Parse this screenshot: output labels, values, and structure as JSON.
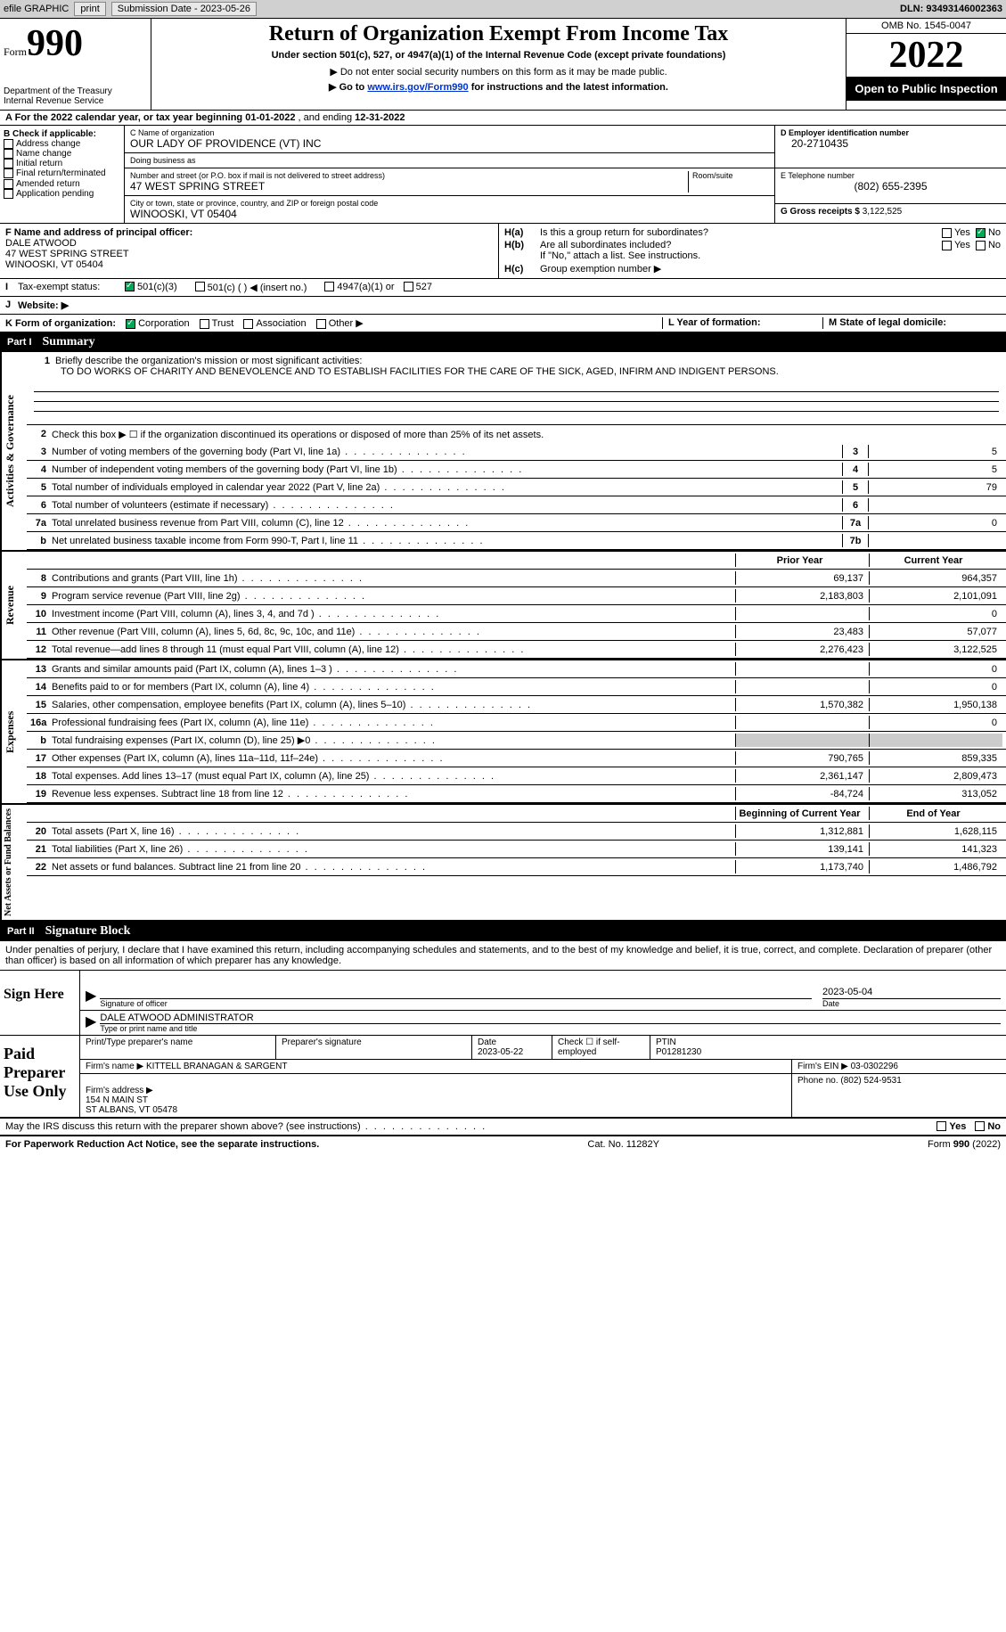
{
  "topbar": {
    "efile_label": "efile GRAPHIC",
    "print_btn": "print",
    "submission_label": "Submission Date - 2023-05-26",
    "dln_label": "DLN: 93493146002363"
  },
  "header": {
    "form_word": "Form",
    "form_num": "990",
    "dept": "Department of the Treasury\nInternal Revenue Service",
    "title": "Return of Organization Exempt From Income Tax",
    "subtitle": "Under section 501(c), 527, or 4947(a)(1) of the Internal Revenue Code (except private foundations)",
    "note1": "▶ Do not enter social security numbers on this form as it may be made public.",
    "note2": "▶ Go to",
    "note2_link": "www.irs.gov/Form990",
    "note2_tail": "for instructions and the latest information.",
    "omb": "OMB No. 1545-0047",
    "year": "2022",
    "open_public": "Open to Public Inspection"
  },
  "row_a": {
    "text": "A For the 2022 calendar year, or tax year beginning",
    "begin": "01-01-2022",
    "mid": ", and ending",
    "end": "12-31-2022"
  },
  "section_b": {
    "check_label": "B Check if applicable:",
    "opts": [
      "Address change",
      "Name change",
      "Initial return",
      "Final return/terminated",
      "Amended return",
      "Application pending"
    ],
    "c_label": "C Name of organization",
    "org_name": "OUR LADY OF PROVIDENCE (VT) INC",
    "dba_label": "Doing business as",
    "dba": "",
    "street_label": "Number and street (or P.O. box if mail is not delivered to street address)",
    "room_label": "Room/suite",
    "street": "47 WEST SPRING STREET",
    "city_label": "City or town, state or province, country, and ZIP or foreign postal code",
    "city": "WINOOSKI, VT  05404",
    "d_label": "D Employer identification number",
    "ein": "20-2710435",
    "e_label": "E Telephone number",
    "phone": "(802) 655-2395",
    "g_label": "G Gross receipts $",
    "gross": "3,122,525"
  },
  "section_fh": {
    "f_label": "F Name and address of principal officer:",
    "officer": "DALE ATWOOD\n47 WEST SPRING STREET\nWINOOSKI, VT  05404",
    "ha_label": "H(a)",
    "ha_text": "Is this a group return for subordinates?",
    "hb_label": "H(b)",
    "hb_text": "Are all subordinates included?",
    "hb_note": "If \"No,\" attach a list. See instructions.",
    "hc_label": "H(c)",
    "hc_text": "Group exemption number ▶",
    "yes": "Yes",
    "no": "No"
  },
  "row_i": {
    "label": "I",
    "text": "Tax-exempt status:",
    "opt1": "501(c)(3)",
    "opt2": "501(c) (   ) ◀ (insert no.)",
    "opt3": "4947(a)(1) or",
    "opt4": "527"
  },
  "row_j": {
    "label": "J",
    "text": "Website: ▶"
  },
  "row_k": {
    "label": "K Form of organization:",
    "opts": [
      "Corporation",
      "Trust",
      "Association",
      "Other ▶"
    ],
    "l_label": "L Year of formation:",
    "m_label": "M State of legal domicile:"
  },
  "part1": {
    "num": "Part I",
    "title": "Summary",
    "side_activities": "Activities & Governance",
    "side_revenue": "Revenue",
    "side_expenses": "Expenses",
    "side_net": "Net Assets or Fund Balances",
    "line1_label": "1",
    "line1_text": "Briefly describe the organization's mission or most significant activities:",
    "mission": "TO DO WORKS OF CHARITY AND BENEVOLENCE AND TO ESTABLISH FACILITIES FOR THE CARE OF THE SICK, AGED, INFIRM AND INDIGENT PERSONS.",
    "line2_label": "2",
    "line2_text": "Check this box ▶ ☐ if the organization discontinued its operations or disposed of more than 25% of its net assets.",
    "prior_header": "Prior Year",
    "current_header": "Current Year",
    "begin_header": "Beginning of Current Year",
    "end_header": "End of Year",
    "rows_gov": [
      {
        "n": "3",
        "t": "Number of voting members of the governing body (Part VI, line 1a)",
        "box": "3",
        "v": "5"
      },
      {
        "n": "4",
        "t": "Number of independent voting members of the governing body (Part VI, line 1b)",
        "box": "4",
        "v": "5"
      },
      {
        "n": "5",
        "t": "Total number of individuals employed in calendar year 2022 (Part V, line 2a)",
        "box": "5",
        "v": "79"
      },
      {
        "n": "6",
        "t": "Total number of volunteers (estimate if necessary)",
        "box": "6",
        "v": ""
      },
      {
        "n": "7a",
        "t": "Total unrelated business revenue from Part VIII, column (C), line 12",
        "box": "7a",
        "v": "0"
      },
      {
        "n": "b",
        "t": "Net unrelated business taxable income from Form 990-T, Part I, line 11",
        "box": "7b",
        "v": ""
      }
    ],
    "rows_rev": [
      {
        "n": "8",
        "t": "Contributions and grants (Part VIII, line 1h)",
        "p": "69,137",
        "c": "964,357"
      },
      {
        "n": "9",
        "t": "Program service revenue (Part VIII, line 2g)",
        "p": "2,183,803",
        "c": "2,101,091"
      },
      {
        "n": "10",
        "t": "Investment income (Part VIII, column (A), lines 3, 4, and 7d )",
        "p": "",
        "c": "0"
      },
      {
        "n": "11",
        "t": "Other revenue (Part VIII, column (A), lines 5, 6d, 8c, 9c, 10c, and 11e)",
        "p": "23,483",
        "c": "57,077"
      },
      {
        "n": "12",
        "t": "Total revenue—add lines 8 through 11 (must equal Part VIII, column (A), line 12)",
        "p": "2,276,423",
        "c": "3,122,525"
      }
    ],
    "rows_exp": [
      {
        "n": "13",
        "t": "Grants and similar amounts paid (Part IX, column (A), lines 1–3 )",
        "p": "",
        "c": "0"
      },
      {
        "n": "14",
        "t": "Benefits paid to or for members (Part IX, column (A), line 4)",
        "p": "",
        "c": "0"
      },
      {
        "n": "15",
        "t": "Salaries, other compensation, employee benefits (Part IX, column (A), lines 5–10)",
        "p": "1,570,382",
        "c": "1,950,138"
      },
      {
        "n": "16a",
        "t": "Professional fundraising fees (Part IX, column (A), line 11e)",
        "p": "",
        "c": "0"
      },
      {
        "n": "b",
        "t": "Total fundraising expenses (Part IX, column (D), line 25) ▶0",
        "p": "GREY",
        "c": "GREY"
      },
      {
        "n": "17",
        "t": "Other expenses (Part IX, column (A), lines 11a–11d, 11f–24e)",
        "p": "790,765",
        "c": "859,335"
      },
      {
        "n": "18",
        "t": "Total expenses. Add lines 13–17 (must equal Part IX, column (A), line 25)",
        "p": "2,361,147",
        "c": "2,809,473"
      },
      {
        "n": "19",
        "t": "Revenue less expenses. Subtract line 18 from line 12",
        "p": "-84,724",
        "c": "313,052"
      }
    ],
    "rows_net": [
      {
        "n": "20",
        "t": "Total assets (Part X, line 16)",
        "p": "1,312,881",
        "c": "1,628,115"
      },
      {
        "n": "21",
        "t": "Total liabilities (Part X, line 26)",
        "p": "139,141",
        "c": "141,323"
      },
      {
        "n": "22",
        "t": "Net assets or fund balances. Subtract line 21 from line 20",
        "p": "1,173,740",
        "c": "1,486,792"
      }
    ]
  },
  "part2": {
    "num": "Part II",
    "title": "Signature Block",
    "declaration": "Under penalties of perjury, I declare that I have examined this return, including accompanying schedules and statements, and to the best of my knowledge and belief, it is true, correct, and complete. Declaration of preparer (other than officer) is based on all information of which preparer has any knowledge.",
    "sign_here": "Sign Here",
    "sig_officer_label": "Signature of officer",
    "sig_date": "2023-05-04",
    "sig_date_label": "Date",
    "officer_name": "DALE ATWOOD  ADMINISTRATOR",
    "officer_name_label": "Type or print name and title",
    "paid_label": "Paid Preparer Use Only",
    "prep_name_label": "Print/Type preparer's name",
    "prep_sig_label": "Preparer's signature",
    "prep_date_label": "Date",
    "prep_date": "2023-05-22",
    "self_emp_label": "Check ☐ if self-employed",
    "ptin_label": "PTIN",
    "ptin": "P01281230",
    "firm_name_label": "Firm's name    ▶",
    "firm_name": "KITTELL BRANAGAN & SARGENT",
    "firm_ein_label": "Firm's EIN ▶",
    "firm_ein": "03-0302296",
    "firm_addr_label": "Firm's address ▶",
    "firm_addr": "154 N MAIN ST\nST ALBANS, VT  05478",
    "firm_phone_label": "Phone no.",
    "firm_phone": "(802) 524-9531",
    "discuss": "May the IRS discuss this return with the preparer shown above? (see instructions)"
  },
  "footer": {
    "left": "For Paperwork Reduction Act Notice, see the separate instructions.",
    "mid": "Cat. No. 11282Y",
    "right": "Form 990 (2022)"
  }
}
